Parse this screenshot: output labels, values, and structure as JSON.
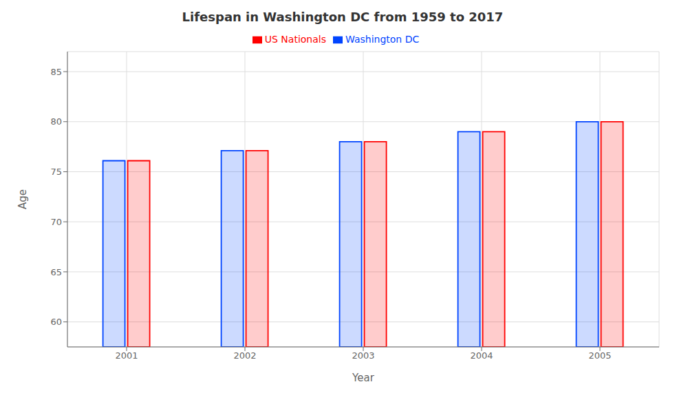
{
  "chart_data": {
    "type": "bar",
    "title": "Lifespan in Washington DC from 1959 to 2017",
    "x_label": "Year",
    "y_label": "Age",
    "categories": [
      "2001",
      "2002",
      "2003",
      "2004",
      "2005"
    ],
    "series": [
      {
        "name": "Washington DC",
        "color": "#0044ff",
        "values": [
          76.1,
          77.1,
          78.0,
          79.0,
          80.0
        ]
      },
      {
        "name": "US Nationals",
        "color": "#ff0000",
        "values": [
          76.1,
          77.1,
          78.0,
          79.0,
          80.0
        ]
      }
    ],
    "ylim": [
      57.5,
      87
    ],
    "yticks": [
      60,
      65,
      70,
      75,
      80,
      85
    ],
    "grid": true,
    "legend": "top"
  }
}
